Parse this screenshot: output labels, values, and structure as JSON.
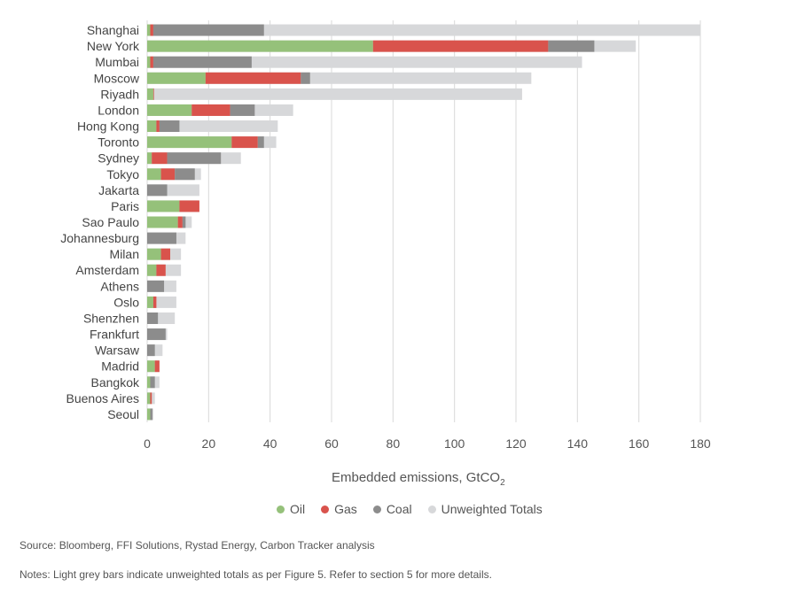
{
  "chart_data": {
    "type": "bar",
    "orientation": "horizontal",
    "stacked": true,
    "categories": [
      "Shanghai",
      "New York",
      "Mumbai",
      "Moscow",
      "Riyadh",
      "London",
      "Hong Kong",
      "Toronto",
      "Sydney",
      "Tokyo",
      "Jakarta",
      "Paris",
      "Sao Paulo",
      "Johannesburg",
      "Milan",
      "Amsterdam",
      "Athens",
      "Oslo",
      "Shenzhen",
      "Frankfurt",
      "Warsaw",
      "Madrid",
      "Bangkok",
      "Buenos Aires",
      "Seoul"
    ],
    "series": [
      {
        "name": "Oil",
        "color": "#95c17a",
        "values": [
          1,
          73.5,
          1,
          19,
          2,
          14.5,
          3,
          27.5,
          1.5,
          4.5,
          0,
          10.5,
          10,
          0,
          4.5,
          3,
          0,
          2,
          0,
          0,
          0,
          2.5,
          1,
          1,
          1
        ]
      },
      {
        "name": "Gas",
        "color": "#d9534c",
        "values": [
          1,
          57,
          1,
          31,
          0.2,
          12.5,
          1,
          8.5,
          5,
          4.5,
          0,
          6.5,
          1.5,
          0,
          3,
          3,
          0,
          1,
          0,
          0,
          0,
          1.5,
          0,
          0.5,
          0
        ]
      },
      {
        "name": "Coal",
        "color": "#8c8c8c",
        "values": [
          36,
          15,
          32,
          3,
          0,
          8,
          6.5,
          2,
          17.5,
          6.5,
          6.5,
          0,
          1,
          9.5,
          0,
          0,
          5.5,
          0,
          3.5,
          6,
          2.5,
          0,
          1.5,
          0,
          0.7
        ]
      },
      {
        "name": "Unweighted Totals",
        "color": "#d7d8da",
        "total_values": [
          180,
          159,
          141.5,
          125,
          122,
          47.5,
          42.5,
          42,
          30.5,
          17.5,
          17,
          16.5,
          14.5,
          12.5,
          11,
          11,
          9.5,
          9.5,
          9,
          6.5,
          5,
          4,
          4,
          2.5,
          2
        ]
      }
    ],
    "xlim": [
      0,
      180
    ],
    "xticks": [
      0,
      20,
      40,
      60,
      80,
      100,
      120,
      140,
      160,
      180
    ],
    "xlabel_main": "Embedded emissions, GtCO",
    "xlabel_sub": "2",
    "grid": "vertical",
    "legend_position": "bottom-center"
  },
  "notes": {
    "source": "Source: Bloomberg, FFI Solutions, Rystad Energy, Carbon Tracker analysis",
    "notes": "Notes: Light grey bars indicate unweighted totals as per Figure 5. Refer to section 5 for more details."
  }
}
